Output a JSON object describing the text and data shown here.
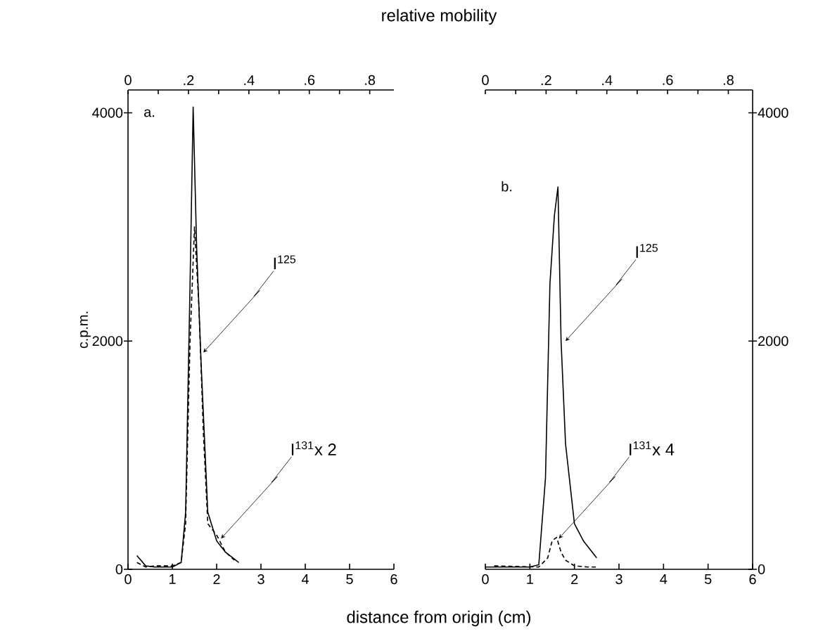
{
  "chart_data": [
    {
      "type": "line",
      "xlabel": "distance from origin (cm)",
      "x2label": "relative mobility",
      "ylabel": "c.p.m.",
      "xlim": [
        0,
        6
      ],
      "xticks": [
        0,
        1,
        2,
        3,
        4,
        5,
        6
      ],
      "ylim": [
        0,
        4200
      ],
      "yticks": [
        0,
        2000,
        4000
      ],
      "x2lim": [
        0,
        0.88
      ],
      "x2ticks": [
        0,
        {
          "value": 0.1,
          "label": null
        },
        {
          "value": 0.2,
          "label": ".2"
        },
        {
          "value": 0.3,
          "label": null
        },
        {
          "value": 0.4,
          "label": ".4"
        },
        {
          "value": 0.5,
          "label": null
        },
        {
          "value": 0.6,
          "label": ".6"
        },
        {
          "value": 0.7,
          "label": null
        },
        {
          "value": 0.8,
          "label": ".8"
        }
      ],
      "grid": false,
      "series": [
        {
          "color": "#000000",
          "line_style": "solid",
          "x": [
            0.2,
            0.4,
            0.6,
            0.8,
            1.0,
            1.2,
            1.3,
            1.4,
            1.47,
            1.55,
            1.65,
            1.8,
            2.0,
            2.2,
            2.5
          ],
          "values": [
            120,
            30,
            20,
            20,
            20,
            60,
            500,
            2500,
            4050,
            2800,
            1800,
            500,
            250,
            150,
            60
          ]
        },
        {
          "color": "#000000",
          "line_style": "dashed",
          "x": [
            0.2,
            0.4,
            0.6,
            0.8,
            1.0,
            1.2,
            1.3,
            1.4,
            1.5,
            1.6,
            1.7,
            1.8,
            2.0,
            2.2,
            2.4
          ],
          "values": [
            60,
            20,
            30,
            30,
            30,
            60,
            400,
            2000,
            3000,
            2300,
            1200,
            400,
            300,
            150,
            80
          ]
        }
      ],
      "annotations": [
        "a.",
        {
          "text": "I$^{125}$",
          "x": 1.7,
          "y": 1900
        },
        {
          "text": "I$^{131}$x 2",
          "x": 2.1,
          "y": 270
        }
      ]
    },
    {
      "type": "line",
      "xlim": [
        0,
        6
      ],
      "xticks": [
        0,
        1,
        2,
        3,
        4,
        5,
        6
      ],
      "ylim": [
        0,
        4200
      ],
      "yticks": [
        0,
        2000,
        4000
      ],
      "x2lim": [
        0,
        0.88
      ],
      "x2ticks": [
        0,
        {
          "value": 0.1,
          "label": null
        },
        {
          "value": 0.2,
          "label": ".2"
        },
        {
          "value": 0.3,
          "label": null
        },
        {
          "value": 0.4,
          "label": ".4"
        },
        {
          "value": 0.5,
          "label": null
        },
        {
          "value": 0.6,
          "label": ".6"
        },
        {
          "value": 0.7,
          "label": null
        },
        {
          "value": 0.8,
          "label": ".8"
        }
      ],
      "grid": false,
      "series": [
        {
          "color": "#000000",
          "line_style": "solid",
          "x": [
            0.0,
            0.5,
            1.0,
            1.2,
            1.35,
            1.45,
            1.55,
            1.63,
            1.7,
            1.8,
            2.0,
            2.2,
            2.5
          ],
          "values": [
            20,
            20,
            20,
            40,
            800,
            2500,
            3100,
            3350,
            2000,
            1100,
            400,
            250,
            100
          ]
        },
        {
          "color": "#000000",
          "line_style": "dashed",
          "x": [
            0.2,
            1.2,
            1.4,
            1.5,
            1.6,
            1.7,
            1.8,
            2.0,
            2.3,
            2.5
          ],
          "values": [
            30,
            20,
            100,
            250,
            280,
            150,
            80,
            30,
            20,
            20
          ]
        }
      ],
      "annotations": [
        "b.",
        {
          "text": "I$^{125}$",
          "x": 1.8,
          "y": 2000
        },
        {
          "text": "I$^{131}$x 4",
          "x": 1.65,
          "y": 270
        }
      ]
    }
  ]
}
